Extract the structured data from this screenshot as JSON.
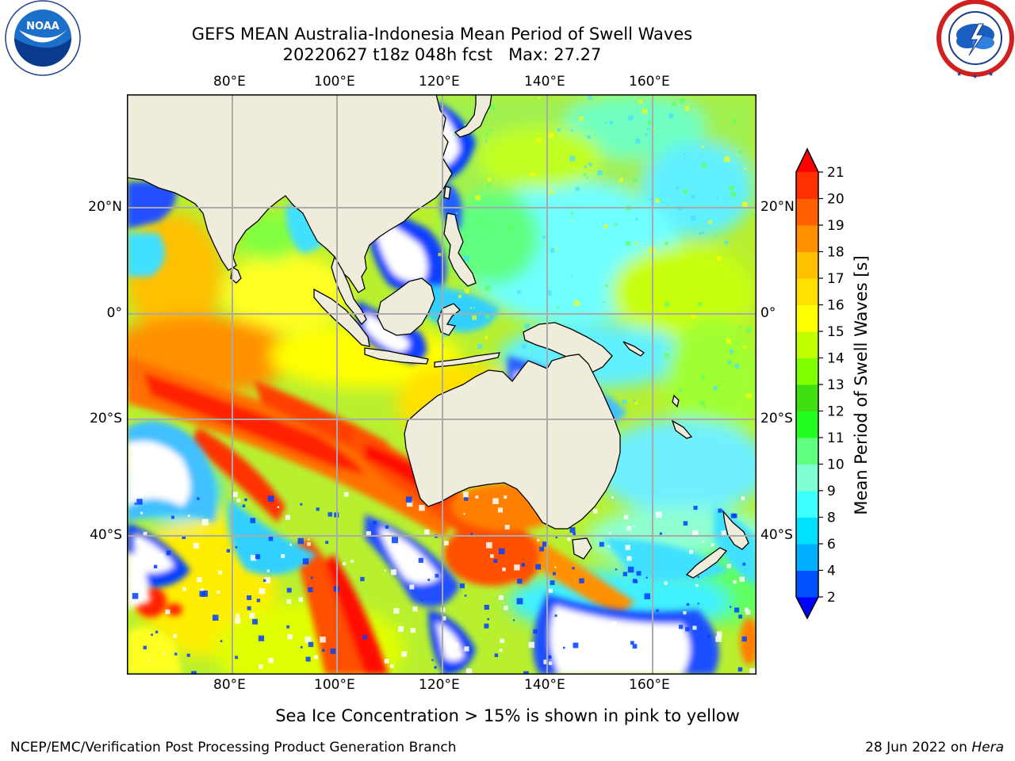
{
  "header": {
    "title_line1": "GEFS MEAN Australia-Indonesia Mean Period of Swell Waves",
    "title_line2": "20220627 t18z 048h fcst   Max: 27.27"
  },
  "logos": {
    "left": {
      "icon": "noaa-logo",
      "text": "NOAA",
      "ring_text": "NATIONAL OCEANIC AND ATMOSPHERIC ADMINISTRATION · U.S. DEPARTMENT OF COMMERCE"
    },
    "right": {
      "icon": "nws-logo",
      "ring_text": "NATIONAL WEATHER SERVICE"
    }
  },
  "map": {
    "lon_labels": [
      "80°E",
      "100°E",
      "120°E",
      "140°E",
      "160°E"
    ],
    "lat_labels": [
      "20°N",
      "0°",
      "20°S",
      "40°S"
    ],
    "land_color": "#efecdc",
    "grid_color": "#aaaaaa"
  },
  "colorbar": {
    "label": "Mean Period of Swell Waves [s]",
    "ticks": [
      "2",
      "4",
      "6",
      "8",
      "9",
      "10",
      "11",
      "12",
      "13",
      "14",
      "15",
      "16",
      "17",
      "18",
      "19",
      "20",
      "21"
    ],
    "colors": [
      "#0050ff",
      "#00b0ff",
      "#00e0ff",
      "#40ffff",
      "#80ffd0",
      "#60ff80",
      "#20ff20",
      "#40e010",
      "#80ff00",
      "#c0ff00",
      "#ffff00",
      "#ffe000",
      "#ffc000",
      "#ff9000",
      "#ff6000",
      "#ff3000"
    ],
    "extend_low_color": "#0000ff",
    "extend_high_color": "#ff0000"
  },
  "footer": {
    "note": "Sea Ice Concentration > 15% is shown in pink to yellow",
    "left": "NCEP/EMC/Verification Post Processing Product Generation Branch",
    "right_prefix": "28 Jun 2022 on ",
    "right_italic": "Hera"
  }
}
